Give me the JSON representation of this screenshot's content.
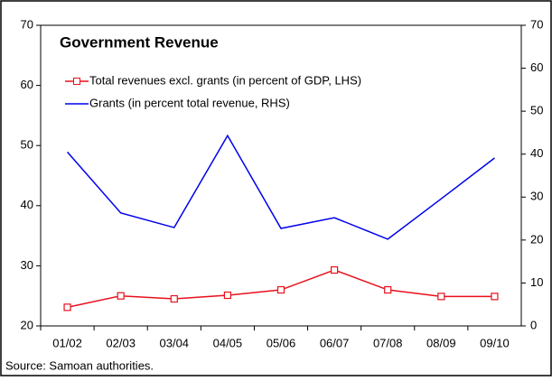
{
  "chart_data": {
    "type": "line",
    "title": "Government Revenue",
    "source": "Source: Samoan authorities.",
    "categories": [
      "01/02",
      "02/03",
      "03/04",
      "04/05",
      "05/06",
      "06/07",
      "07/08",
      "08/09",
      "09/10"
    ],
    "series": [
      {
        "name": "Total revenues excl. grants (in percent of GDP, LHS)",
        "color": "#e8101c",
        "marker": "square",
        "axis": "y",
        "values": [
          23.1,
          25.0,
          24.5,
          25.1,
          26.0,
          29.3,
          26.0,
          24.9,
          24.9
        ]
      },
      {
        "name": "Grants (in percent total revenue, RHS)",
        "color": "#0000ee",
        "axis": "y2",
        "values": [
          40.5,
          26.3,
          22.9,
          44.3,
          22.7,
          25.2,
          20.2,
          29.6,
          39.1
        ]
      }
    ],
    "ylim": [
      20,
      70
    ],
    "yticks": [
      20,
      30,
      40,
      50,
      60,
      70
    ],
    "y2lim": [
      0,
      70
    ],
    "y2ticks": [
      0,
      10,
      20,
      30,
      40,
      50,
      60,
      70
    ],
    "grid": false
  }
}
